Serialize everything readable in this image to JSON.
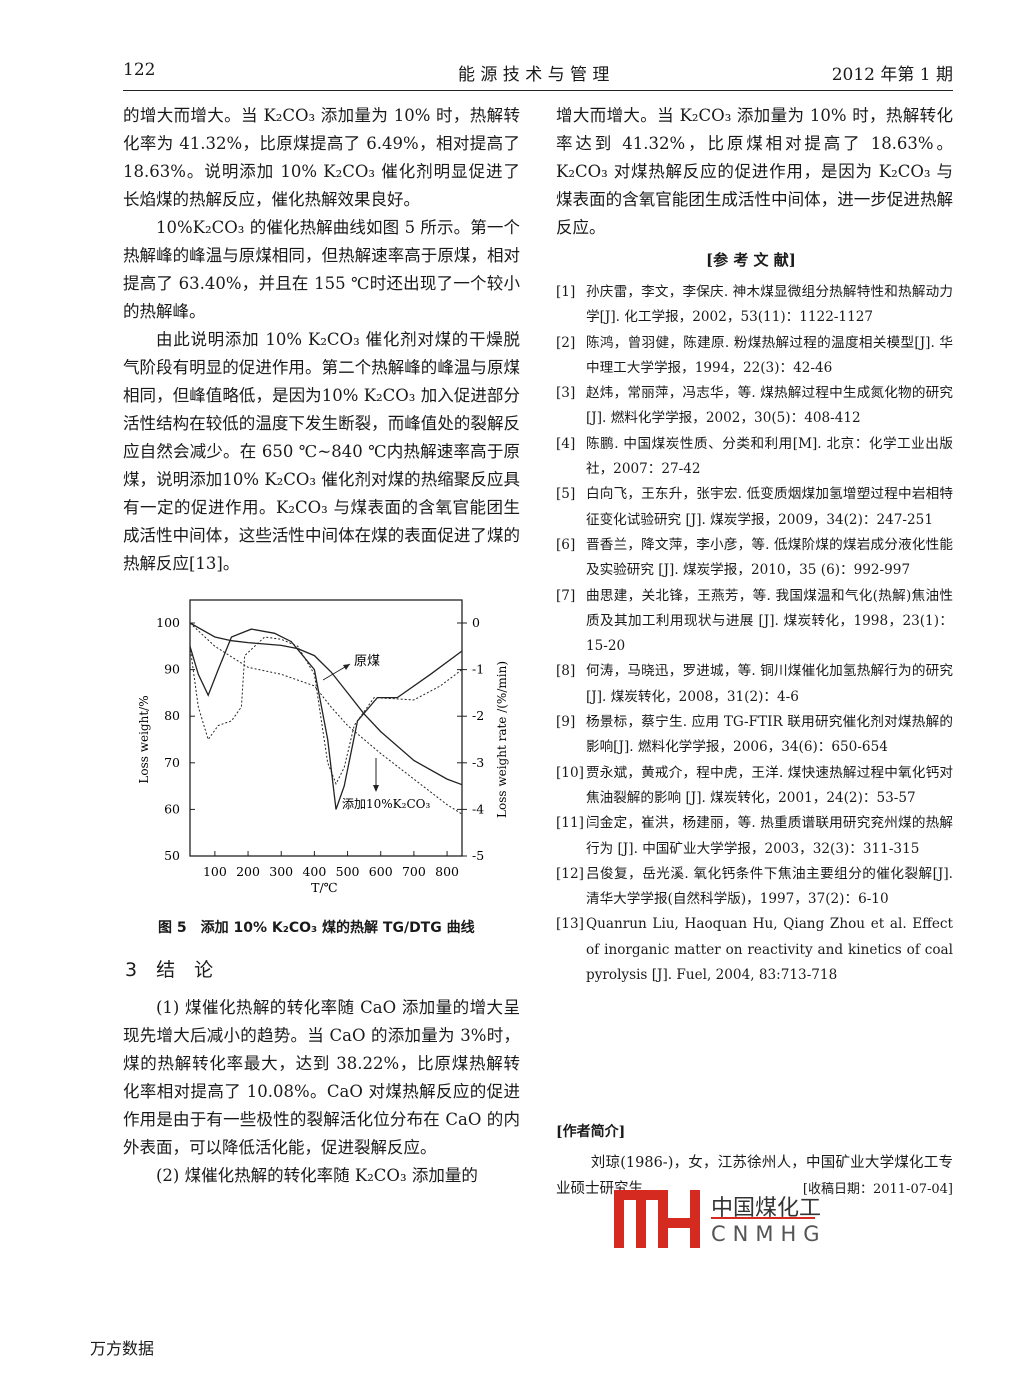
{
  "header": {
    "page_number": "122",
    "journal": "能 源 技 术 与 管 理",
    "issue": "2012 年第 1 期"
  },
  "left_column": {
    "paragraphs": [
      "的增大而增大。当 K₂CO₃ 添加量为 10% 时，热解转化率为 41.32%，比原煤提高了 6.49%，相对提高了 18.63%。说明添加 10% K₂CO₃ 催化剂明显促进了长焰煤的热解反应，催化热解效果良好。",
      "10%K₂CO₃ 的催化热解曲线如图 5 所示。第一个热解峰的峰温与原煤相同，但热解速率高于原煤，相对提高了 63.40%，并且在 155 ℃时还出现了一个较小的热解峰。",
      "由此说明添加 10% K₂CO₃ 催化剂对煤的干燥脱气阶段有明显的促进作用。第二个热解峰的峰温与原煤相同，但峰值略低，是因为10% K₂CO₃ 加入促进部分活性结构在较低的温度下发生断裂，而峰值处的裂解反应自然会减少。在 650 ℃~840 ℃内热解速率高于原煤，说明添加10% K₂CO₃ 催化剂对煤的热缩聚反应具有一定的促进作用。K₂CO₃ 与煤表面的含氧官能团生成活性中间体，这些活性中间体在煤的表面促进了煤的热解反应[13]。"
    ],
    "figure_caption": "图 5　添加 10% K₂CO₃ 煤的热解 TG/DTG 曲线",
    "section_title": "3　结　论",
    "conclusions": [
      "(1) 煤催化热解的转化率随 CaO 添加量的增大呈现先增大后减小的趋势。当 CaO 的添加量为 3%时，煤的热解转化率最大，达到 38.22%，比原煤热解转化率相对提高了 10.08%。CaO 对煤热解反应的促进作用是由于有一些极性的裂解活化位分布在 CaO 的内外表面，可以降低活化能，促进裂解反应。",
      "(2) 煤催化热解的转化率随 K₂CO₃ 添加量的"
    ]
  },
  "right_column": {
    "paragraph": "增大而增大。当 K₂CO₃ 添加量为 10% 时，热解转化率达到 41.32%，比原煤相对提高了 18.63%。K₂CO₃ 对煤热解反应的促进作用，是因为 K₂CO₃ 与煤表面的含氧官能团生成活性中间体，进一步促进热解反应。",
    "references_title": "[参 考 文 献]",
    "references": [
      {
        "n": "[1]",
        "t": "孙庆雷，李文，李保庆. 神木煤显微组分热解特性和热解动力学[J]. 化工学报，2002，53(11)：1122-1127"
      },
      {
        "n": "[2]",
        "t": "陈鸿，曾羽健，陈建原. 粉煤热解过程的温度相关模型[J]. 华中理工大学学报，1994，22(3)：42-46"
      },
      {
        "n": "[3]",
        "t": "赵炜，常丽萍，冯志华，等. 煤热解过程中生成氮化物的研究[J]. 燃料化学学报，2002，30(5)：408-412"
      },
      {
        "n": "[4]",
        "t": "陈鹏. 中国煤炭性质、分类和利用[M]. 北京：化学工业出版社，2007：27-42"
      },
      {
        "n": "[5]",
        "t": "白向飞，王东升，张宇宏. 低变质烟煤加氢增塑过程中岩相特征变化试验研究 [J]. 煤炭学报，2009，34(2)：247-251"
      },
      {
        "n": "[6]",
        "t": "晋香兰，降文萍，李小彦，等. 低煤阶煤的煤岩成分液化性能及实验研究 [J]. 煤炭学报，2010，35 (6)：992-997"
      },
      {
        "n": "[7]",
        "t": "曲思建，关北锋，王燕芳，等. 我国煤温和气化(热解)焦油性质及其加工利用现状与进展 [J]. 煤炭转化，1998，23(1)：15-20"
      },
      {
        "n": "[8]",
        "t": "何涛，马晓迅，罗进城，等. 铜川煤催化加氢热解行为的研究[J]. 煤炭转化，2008，31(2)：4-6"
      },
      {
        "n": "[9]",
        "t": "杨景标，蔡宁生. 应用 TG-FTIR 联用研究催化剂对煤热解的影响[J]. 燃料化学学报，2006，34(6)：650-654"
      },
      {
        "n": "[10]",
        "t": "贾永斌，黄戒介，程中虎，王洋. 煤快速热解过程中氧化钙对焦油裂解的影响 [J]. 煤炭转化，2001，24(2)：53-57"
      },
      {
        "n": "[11]",
        "t": "闫金定，崔洪，杨建丽，等. 热重质谱联用研究兖州煤的热解行为 [J]. 中国矿业大学学报，2003，32(3)：311-315"
      },
      {
        "n": "[12]",
        "t": "吕俊复，岳光溪. 氧化钙条件下焦油主要组分的催化裂解[J]. 清华大学学报(自然科学版)，1997，37(2)：6-10"
      },
      {
        "n": "[13]",
        "t": "Quanrun Liu, Haoquan Hu, Qiang Zhou et al. Effect of inorganic matter on reactivity and kinetics of coal pyrolysis [J]. Fuel, 2004, 83:713-718"
      }
    ],
    "author_title": "[作者简介]",
    "author_bio": "刘琼(1986-)，女，江苏徐州人，中国矿业大学煤化工专业硕士研究生",
    "received": "[收稿日期：2011-07-04]"
  },
  "watermark": {
    "logo_cn": "中国煤化工",
    "logo_en": "CNMHG",
    "logo_mark": "MH",
    "color": "#d42a20"
  },
  "footer": {
    "source": "万方数据"
  },
  "chart_data": {
    "type": "line",
    "xlabel": "T/℃",
    "ylabel": "Loss weight/%",
    "y2label": "Loss weight rate /(%/min)",
    "xlim": [
      25,
      845
    ],
    "ylim": [
      50,
      100
    ],
    "y2lim": [
      -5,
      0
    ],
    "xticks": [
      100,
      200,
      300,
      400,
      500,
      600,
      700,
      800
    ],
    "yticks": [
      50,
      60,
      70,
      80,
      90,
      100
    ],
    "y2ticks": [
      -5,
      -4,
      -3,
      -2,
      -1,
      0
    ],
    "annotations": [
      "原煤",
      "添加10%K₂CO₃"
    ],
    "series": [
      {
        "name": "原煤",
        "kind": "TG",
        "axis": "left",
        "style": "solid",
        "x": [
          25,
          100,
          150,
          200,
          300,
          350,
          400,
          450,
          500,
          550,
          600,
          700,
          800,
          845
        ],
        "y": [
          100,
          97,
          96.2,
          95.8,
          95.2,
          94.5,
          93,
          89.5,
          85,
          80.5,
          76.7,
          70.5,
          66.5,
          65.3
        ]
      },
      {
        "name": "添加10%K₂CO₃",
        "kind": "TG",
        "axis": "left",
        "style": "dashed",
        "x": [
          25,
          100,
          200,
          300,
          400,
          450,
          500,
          600,
          700,
          800,
          845
        ],
        "y": [
          100,
          95,
          90.5,
          89,
          86.5,
          82,
          78,
          72,
          66.5,
          61,
          59
        ]
      },
      {
        "name": "原煤",
        "kind": "DTG",
        "axis": "right",
        "style": "solid",
        "x": [
          25,
          50,
          80,
          110,
          150,
          210,
          280,
          330,
          400,
          440,
          465,
          490,
          530,
          590,
          650,
          750,
          845
        ],
        "y": [
          -0.5,
          -1.1,
          -1.55,
          -1.0,
          -0.3,
          -0.13,
          -0.22,
          -0.4,
          -1.0,
          -2.5,
          -4.0,
          -3.5,
          -2.1,
          -1.6,
          -1.6,
          -1.1,
          -0.6
        ]
      },
      {
        "name": "添加10%K₂CO₃",
        "kind": "DTG",
        "axis": "right",
        "style": "dashed",
        "x": [
          25,
          50,
          80,
          110,
          150,
          180,
          190,
          250,
          300,
          350,
          400,
          440,
          465,
          490,
          520,
          580,
          700,
          780,
          845
        ],
        "y": [
          -0.5,
          -1.8,
          -2.5,
          -2.2,
          -2.1,
          -1.8,
          -0.7,
          -0.3,
          -0.35,
          -0.5,
          -1.1,
          -3.0,
          -3.45,
          -3.1,
          -2.2,
          -1.6,
          -1.65,
          -1.35,
          -1.0
        ]
      }
    ]
  }
}
